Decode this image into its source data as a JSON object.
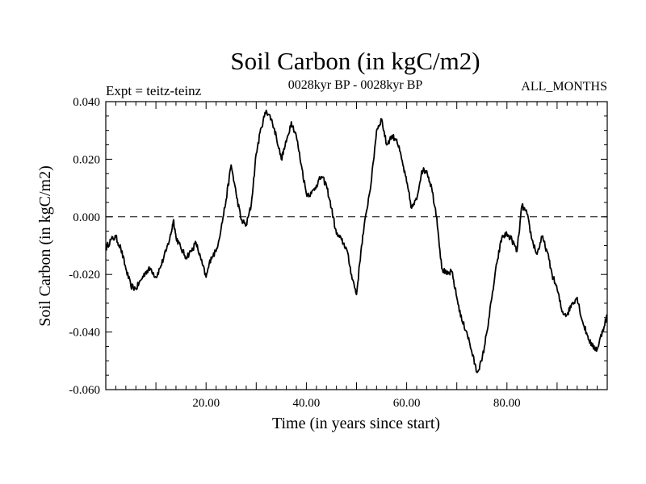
{
  "chart_data": {
    "type": "line",
    "title": "Soil Carbon (in kgC/m2)",
    "subtitle": "0028kyr BP - 0028kyr BP",
    "expt_label": "Expt = teitz-teinz",
    "months_label": "ALL_MONTHS",
    "xlabel": "Time (in years since start)",
    "ylabel": "Soil Carbon (in kgC/m2)",
    "xlim": [
      0,
      100
    ],
    "ylim": [
      -0.06,
      0.04
    ],
    "x_ticks": [
      "20.00",
      "40.00",
      "60.00",
      "80.00"
    ],
    "y_ticks": [
      "0.040",
      "0.020",
      "0.000",
      "-0.020",
      "-0.040",
      "-0.060"
    ],
    "reference_line": 0.0,
    "series": [
      {
        "name": "Soil Carbon",
        "points": [
          [
            0,
            -0.011
          ],
          [
            1,
            -0.008
          ],
          [
            2,
            -0.007
          ],
          [
            3,
            -0.011
          ],
          [
            4,
            -0.018
          ],
          [
            5,
            -0.024
          ],
          [
            6,
            -0.025
          ],
          [
            7,
            -0.022
          ],
          [
            8,
            -0.019
          ],
          [
            9,
            -0.018
          ],
          [
            10,
            -0.021
          ],
          [
            11,
            -0.017
          ],
          [
            12,
            -0.012
          ],
          [
            13,
            -0.006
          ],
          [
            13.5,
            -0.001
          ],
          [
            14,
            -0.007
          ],
          [
            15,
            -0.011
          ],
          [
            16,
            -0.014
          ],
          [
            17,
            -0.012
          ],
          [
            18,
            -0.009
          ],
          [
            19,
            -0.015
          ],
          [
            20,
            -0.021
          ],
          [
            21,
            -0.014
          ],
          [
            22,
            -0.012
          ],
          [
            23,
            -0.004
          ],
          [
            24,
            0.006
          ],
          [
            25,
            0.018
          ],
          [
            26,
            0.008
          ],
          [
            27,
            -0.001
          ],
          [
            28,
            -0.003
          ],
          [
            29,
            0.004
          ],
          [
            30,
            0.022
          ],
          [
            31,
            0.031
          ],
          [
            32,
            0.037
          ],
          [
            33,
            0.034
          ],
          [
            34,
            0.028
          ],
          [
            35,
            0.02
          ],
          [
            36,
            0.026
          ],
          [
            37,
            0.033
          ],
          [
            38,
            0.028
          ],
          [
            39,
            0.018
          ],
          [
            40,
            0.008
          ],
          [
            41,
            0.008
          ],
          [
            42,
            0.011
          ],
          [
            43,
            0.014
          ],
          [
            44,
            0.011
          ],
          [
            45,
            0.003
          ],
          [
            46,
            -0.006
          ],
          [
            47,
            -0.008
          ],
          [
            48,
            -0.011
          ],
          [
            49,
            -0.02
          ],
          [
            50,
            -0.027
          ],
          [
            51,
            -0.01
          ],
          [
            52,
            0.002
          ],
          [
            53,
            0.013
          ],
          [
            54,
            0.03
          ],
          [
            55,
            0.034
          ],
          [
            56,
            0.025
          ],
          [
            57,
            0.028
          ],
          [
            58,
            0.027
          ],
          [
            59,
            0.02
          ],
          [
            60,
            0.012
          ],
          [
            61,
            0.003
          ],
          [
            62,
            0.006
          ],
          [
            63,
            0.016
          ],
          [
            64,
            0.016
          ],
          [
            65,
            0.01
          ],
          [
            66,
            0.0
          ],
          [
            67,
            -0.018
          ],
          [
            68,
            -0.02
          ],
          [
            69,
            -0.019
          ],
          [
            70,
            -0.028
          ],
          [
            71,
            -0.036
          ],
          [
            72,
            -0.04
          ],
          [
            73,
            -0.047
          ],
          [
            74,
            -0.054
          ],
          [
            75,
            -0.05
          ],
          [
            76,
            -0.04
          ],
          [
            77,
            -0.028
          ],
          [
            78,
            -0.016
          ],
          [
            79,
            -0.007
          ],
          [
            80,
            -0.006
          ],
          [
            81,
            -0.008
          ],
          [
            82,
            -0.012
          ],
          [
            83,
            0.004
          ],
          [
            84,
            0.001
          ],
          [
            85,
            -0.008
          ],
          [
            86,
            -0.013
          ],
          [
            87,
            -0.007
          ],
          [
            88,
            -0.012
          ],
          [
            89,
            -0.02
          ],
          [
            90,
            -0.025
          ],
          [
            91,
            -0.033
          ],
          [
            92,
            -0.034
          ],
          [
            93,
            -0.03
          ],
          [
            94,
            -0.028
          ],
          [
            95,
            -0.036
          ],
          [
            96,
            -0.041
          ],
          [
            97,
            -0.045
          ],
          [
            98,
            -0.046
          ],
          [
            99,
            -0.04
          ],
          [
            100,
            -0.034
          ]
        ]
      }
    ]
  }
}
